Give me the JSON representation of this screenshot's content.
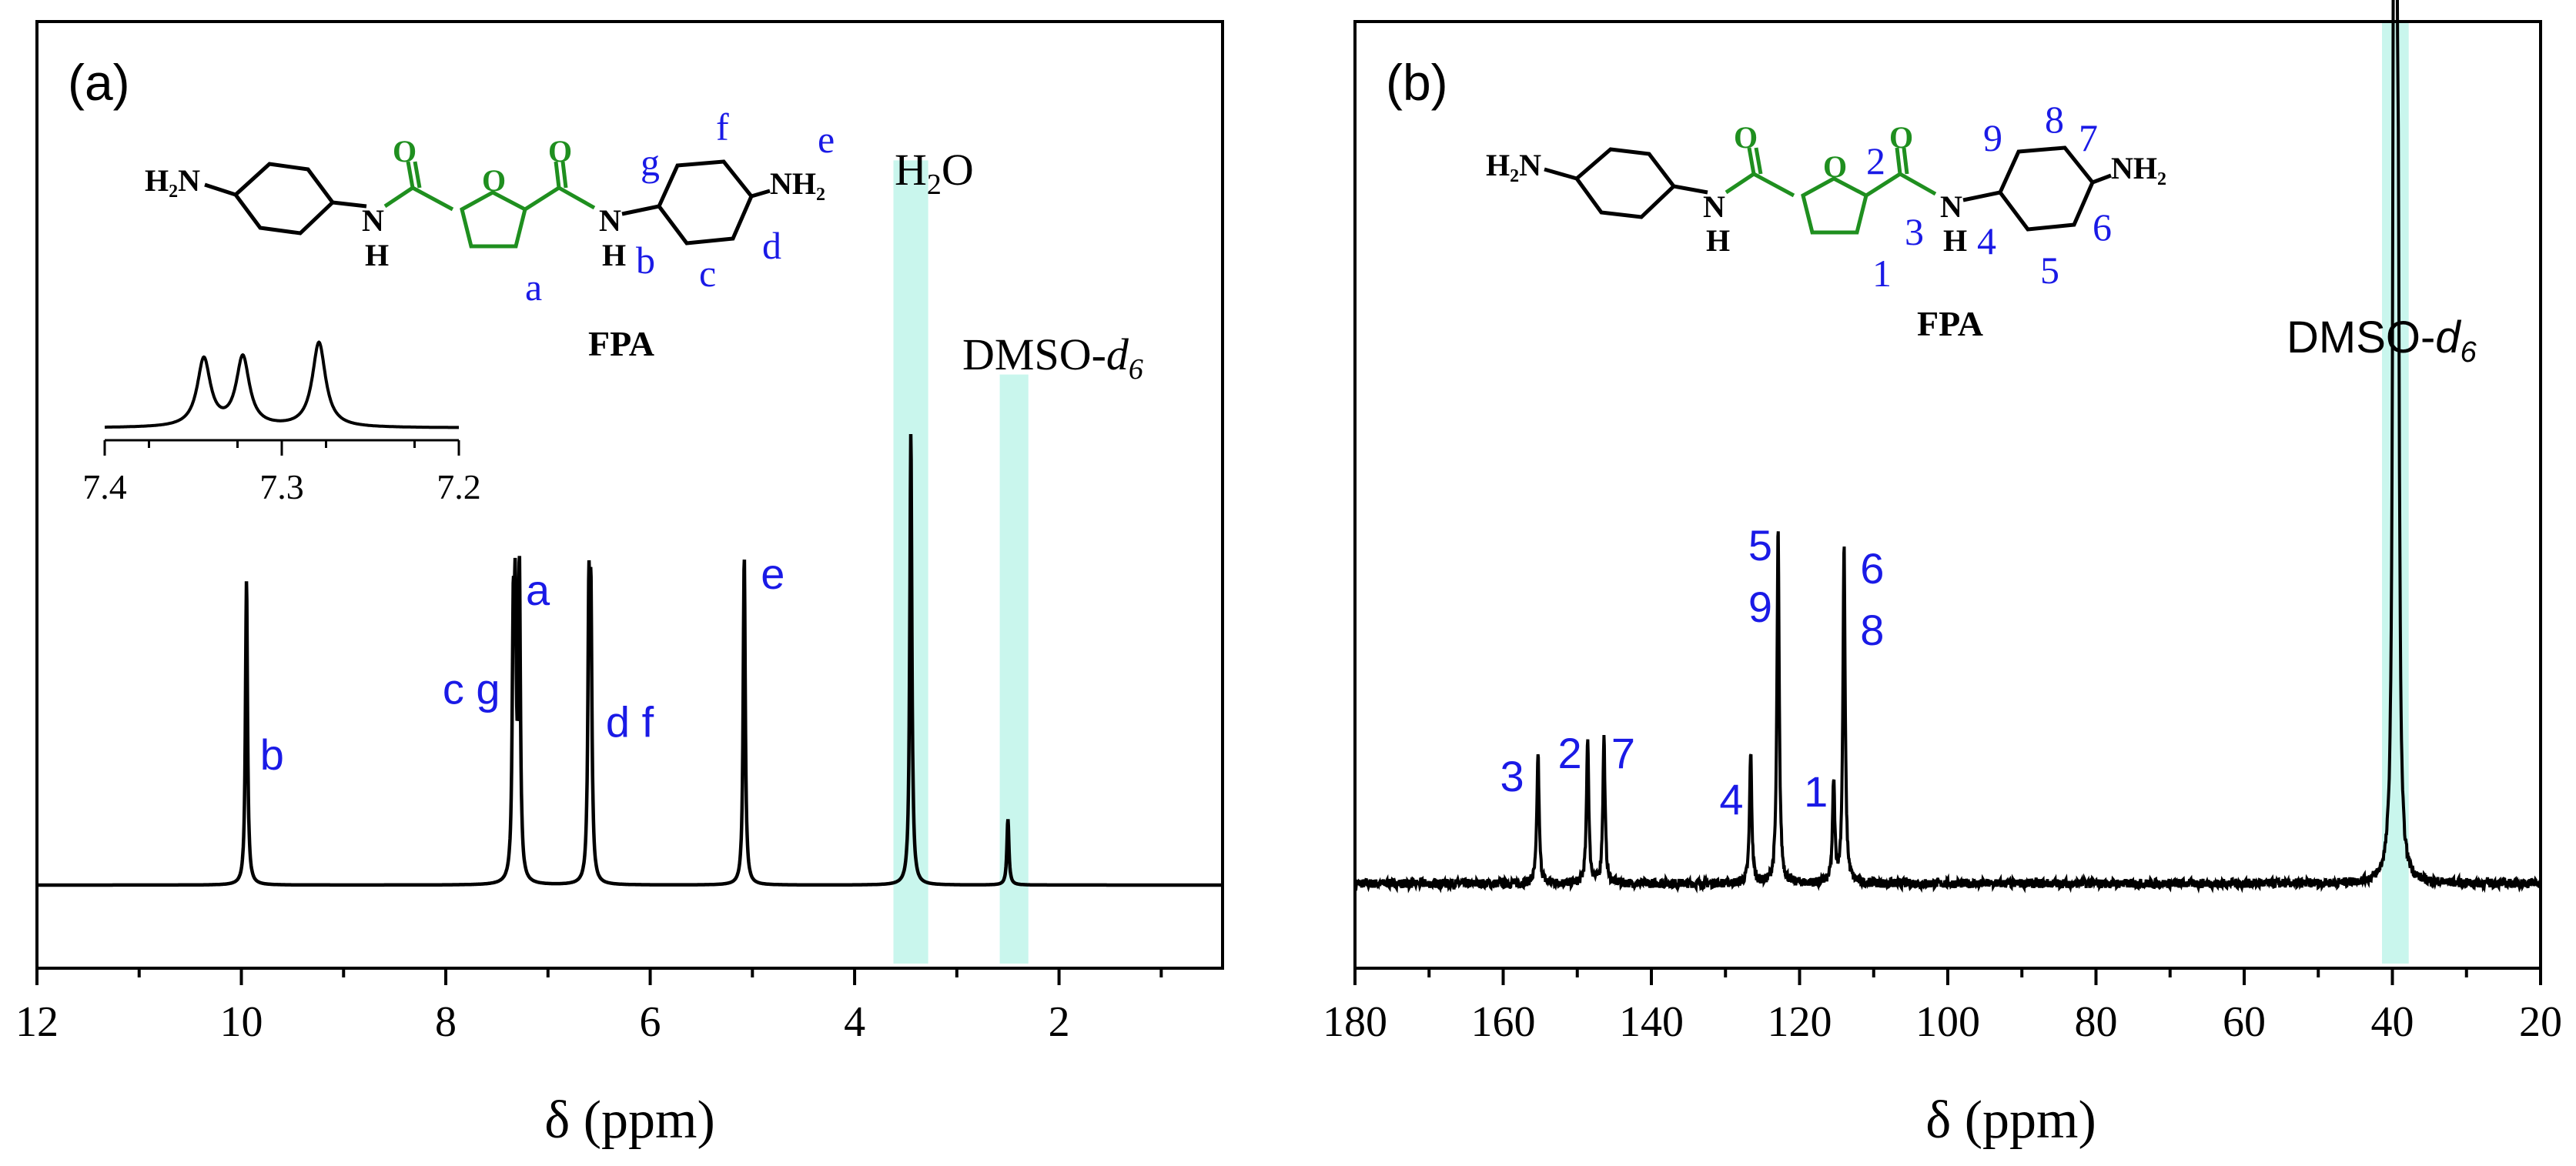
{
  "colors": {
    "axis": "#000000",
    "label": "#1a1ae6",
    "furan": "#1f8f1f",
    "highlight": "#bff5ea"
  },
  "chart_data": [
    {
      "type": "line",
      "panel_label": "(a)",
      "xlabel": "δ (ppm)",
      "ylabel": "",
      "xlim": [
        12,
        0.4
      ],
      "x_ticks": [
        12,
        10,
        8,
        6,
        4,
        2
      ],
      "grid": false,
      "peaks": [
        {
          "x": 9.95,
          "h": 0.37
        },
        {
          "x": 7.34,
          "h": 0.28
        },
        {
          "x": 7.32,
          "h": 0.29
        },
        {
          "x": 7.28,
          "h": 0.37
        },
        {
          "x": 6.6,
          "h": 0.31
        },
        {
          "x": 6.58,
          "h": 0.3
        },
        {
          "x": 5.08,
          "h": 0.4
        },
        {
          "x": 3.45,
          "h": 0.55
        },
        {
          "x": 2.5,
          "h": 0.08
        }
      ],
      "peak_labels": [
        {
          "text": "b",
          "x": 9.7,
          "y": 0.14
        },
        {
          "text": "c g",
          "x": 7.75,
          "y": 0.22
        },
        {
          "text": "a",
          "x": 7.1,
          "y": 0.34
        },
        {
          "text": "d f",
          "x": 6.2,
          "y": 0.18
        },
        {
          "text": "e",
          "x": 4.8,
          "y": 0.36
        }
      ],
      "solvent_bands": [
        {
          "label": "H2O",
          "from": 3.62,
          "to": 3.28,
          "top": 0.88
        },
        {
          "label": "DMSO-d6",
          "from": 2.58,
          "to": 2.3,
          "top": 0.62
        }
      ],
      "molecule_name": "FPA",
      "inset": {
        "xlim": [
          7.4,
          7.2
        ],
        "x_ticks": [
          "7.4",
          "7.3",
          "7.2"
        ],
        "peaks": [
          {
            "x": 7.344,
            "h": 0.8
          },
          {
            "x": 7.322,
            "h": 0.82
          },
          {
            "x": 7.279,
            "h": 1.0
          }
        ]
      }
    },
    {
      "type": "line",
      "panel_label": "(b)",
      "xlabel": "δ (ppm)",
      "ylabel": "",
      "xlim": [
        180,
        20
      ],
      "x_ticks": [
        180,
        160,
        140,
        120,
        100,
        80,
        60,
        40,
        20
      ],
      "grid": false,
      "peaks": [
        {
          "x": 155.3,
          "h": 0.17
        },
        {
          "x": 148.6,
          "h": 0.19
        },
        {
          "x": 146.4,
          "h": 0.19
        },
        {
          "x": 126.6,
          "h": 0.17
        },
        {
          "x": 122.9,
          "h": 0.46
        },
        {
          "x": 115.4,
          "h": 0.13
        },
        {
          "x": 114.0,
          "h": 0.44
        },
        {
          "x": 39.8,
          "h": 1.15
        },
        {
          "x": 39.5,
          "h": 1.15
        },
        {
          "x": 39.2,
          "h": 0.58
        }
      ],
      "peak_labels": [
        {
          "text": "3",
          "x": 158.8,
          "y": 0.12
        },
        {
          "text": "2",
          "x": 151.0,
          "y": 0.15
        },
        {
          "text": "7",
          "x": 143.8,
          "y": 0.15
        },
        {
          "text": "4",
          "x": 129.2,
          "y": 0.09
        },
        {
          "text": "5",
          "x": 125.3,
          "y": 0.42
        },
        {
          "text": "9",
          "x": 125.3,
          "y": 0.34
        },
        {
          "text": "1",
          "x": 117.8,
          "y": 0.1
        },
        {
          "text": "6",
          "x": 110.2,
          "y": 0.39
        },
        {
          "text": "8",
          "x": 110.2,
          "y": 0.31
        }
      ],
      "solvent_bands": [
        {
          "label": "DMSO-d6",
          "from": 41.4,
          "to": 37.8,
          "top": 1.2
        }
      ],
      "molecule_name": "FPA"
    }
  ],
  "molecule": {
    "h2n": "H₂N",
    "nh2": "NH₂",
    "o": "O",
    "nh": "N",
    "h": "H",
    "a_labels": {
      "a": "a",
      "b": "b",
      "c": "c",
      "d": "d",
      "e": "e",
      "f": "f",
      "g": "g"
    },
    "b_labels": [
      "1",
      "2",
      "3",
      "4",
      "5",
      "6",
      "7",
      "8",
      "9"
    ]
  },
  "text": {
    "h2o_base": "H",
    "h2o_sub": "2",
    "h2o_tail": "O",
    "dmso_base": "DMSO-",
    "dmso_d": "d",
    "dmso_sub": "6"
  }
}
